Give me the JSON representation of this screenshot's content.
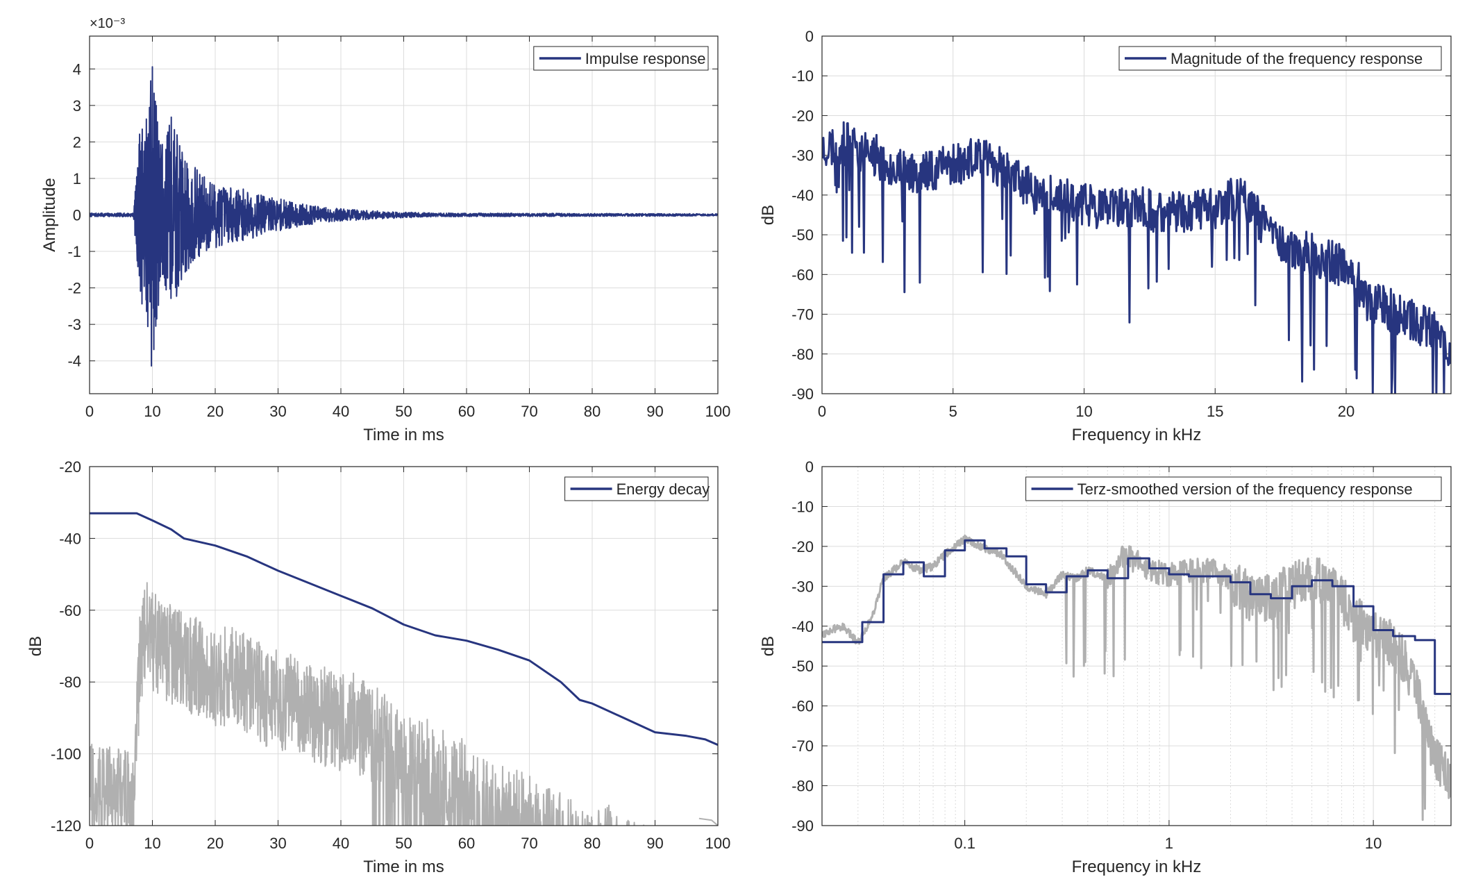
{
  "colors": {
    "series": "#27357f",
    "gray": "#b0b0b0",
    "grid": "#dcdcdc",
    "axis": "#262626",
    "background": "#ffffff"
  },
  "chart_data": [
    {
      "id": "impulse",
      "type": "line",
      "xlabel": "Time in ms",
      "ylabel": "Amplitude",
      "exponent_label": "×10⁻³",
      "xlim": [
        0,
        100
      ],
      "ylim": [
        -4.9,
        4.9
      ],
      "xticks": [
        0,
        10,
        20,
        30,
        40,
        50,
        60,
        70,
        80,
        90,
        100
      ],
      "yticks": [
        -4,
        -3,
        -2,
        -1,
        0,
        1,
        2,
        3,
        4
      ],
      "legend": {
        "position": "top-right",
        "entries": [
          "Impulse response"
        ]
      },
      "grid": true,
      "series": [
        {
          "name": "Impulse response",
          "envelope": [
            [
              0,
              0.05
            ],
            [
              7,
              0.05
            ],
            [
              8,
              2.3
            ],
            [
              9,
              2.7
            ],
            [
              10,
              4.4
            ],
            [
              11,
              2.4
            ],
            [
              12,
              1.9
            ],
            [
              13,
              2.7
            ],
            [
              15,
              1.6
            ],
            [
              18,
              1.1
            ],
            [
              20,
              0.95
            ],
            [
              22,
              0.75
            ],
            [
              25,
              0.7
            ],
            [
              28,
              0.5
            ],
            [
              30,
              0.45
            ],
            [
              34,
              0.3
            ],
            [
              38,
              0.2
            ],
            [
              42,
              0.15
            ],
            [
              47,
              0.1
            ],
            [
              55,
              0.05
            ],
            [
              100,
              0.03
            ]
          ]
        }
      ]
    },
    {
      "id": "magnitude",
      "type": "line",
      "xlabel": "Frequency in kHz",
      "ylabel": "dB",
      "xlim": [
        0,
        24
      ],
      "ylim": [
        -90,
        0
      ],
      "xticks": [
        0,
        5,
        10,
        15,
        20
      ],
      "yticks": [
        0,
        -10,
        -20,
        -30,
        -40,
        -50,
        -60,
        -70,
        -80,
        -90
      ],
      "legend": {
        "position": "top-right",
        "entries": [
          "Magnitude of the frequency response"
        ]
      },
      "grid": true,
      "series": [
        {
          "name": "Magnitude of the frequency response",
          "trend": [
            [
              0,
              -28
            ],
            [
              1,
              -27
            ],
            [
              2,
              -30
            ],
            [
              3,
              -34
            ],
            [
              4,
              -34
            ],
            [
              5,
              -32
            ],
            [
              6,
              -31
            ],
            [
              7,
              -33
            ],
            [
              8,
              -39
            ],
            [
              9,
              -41
            ],
            [
              10,
              -42
            ],
            [
              11,
              -44
            ],
            [
              12,
              -43
            ],
            [
              13,
              -45
            ],
            [
              14,
              -44
            ],
            [
              15,
              -43
            ],
            [
              16,
              -40
            ],
            [
              17,
              -49
            ],
            [
              18,
              -53
            ],
            [
              19,
              -56
            ],
            [
              20,
              -58
            ],
            [
              21,
              -67
            ],
            [
              22,
              -70
            ],
            [
              23,
              -73
            ],
            [
              24,
              -78
            ]
          ]
        }
      ]
    },
    {
      "id": "decay",
      "type": "line",
      "xlabel": "Time in ms",
      "ylabel": "dB",
      "xlim": [
        0,
        100
      ],
      "ylim": [
        -120,
        -20
      ],
      "xticks": [
        0,
        10,
        20,
        30,
        40,
        50,
        60,
        70,
        80,
        90,
        100
      ],
      "yticks": [
        -20,
        -40,
        -60,
        -80,
        -100,
        -120
      ],
      "legend": {
        "position": "top-right",
        "entries": [
          "Energy decay"
        ]
      },
      "grid": true,
      "series": [
        {
          "name": "Energy decay",
          "points": [
            [
              0,
              -33
            ],
            [
              7.5,
              -33
            ],
            [
              10,
              -35
            ],
            [
              13,
              -37.5
            ],
            [
              15,
              -40
            ],
            [
              20,
              -42
            ],
            [
              25,
              -45
            ],
            [
              30,
              -49
            ],
            [
              35,
              -52.5
            ],
            [
              40,
              -56
            ],
            [
              45,
              -59.5
            ],
            [
              50,
              -64
            ],
            [
              55,
              -67
            ],
            [
              60,
              -68.5
            ],
            [
              65,
              -71
            ],
            [
              70,
              -74
            ],
            [
              75,
              -80
            ],
            [
              78,
              -85
            ],
            [
              80,
              -86
            ],
            [
              85,
              -90
            ],
            [
              90,
              -94
            ],
            [
              95,
              -95
            ],
            [
              98,
              -96
            ],
            [
              100,
              -97.5
            ]
          ]
        },
        {
          "name": "",
          "envelope": [
            [
              0,
              -97
            ],
            [
              7,
              -99
            ],
            [
              8,
              -60
            ],
            [
              9,
              -50
            ],
            [
              10,
              -55
            ],
            [
              12,
              -57
            ],
            [
              15,
              -60
            ],
            [
              18,
              -63
            ],
            [
              20,
              -65
            ],
            [
              22,
              -64
            ],
            [
              25,
              -66
            ],
            [
              28,
              -70
            ],
            [
              30,
              -71
            ],
            [
              33,
              -72
            ],
            [
              35,
              -74
            ],
            [
              38,
              -76
            ],
            [
              40,
              -78
            ],
            [
              42,
              -77
            ],
            [
              45,
              -80
            ],
            [
              48,
              -85
            ],
            [
              50,
              -88
            ],
            [
              52,
              -88
            ],
            [
              55,
              -92
            ],
            [
              57,
              -92
            ],
            [
              60,
              -97
            ],
            [
              62,
              -100
            ],
            [
              65,
              -103
            ],
            [
              70,
              -105
            ],
            [
              72,
              -108
            ],
            [
              75,
              -110
            ],
            [
              78,
              -115
            ],
            [
              80,
              -115
            ],
            [
              82,
              -112
            ],
            [
              85,
              -118
            ],
            [
              88,
              -119
            ],
            [
              90,
              -119
            ]
          ]
        }
      ]
    },
    {
      "id": "terz",
      "type": "line",
      "xlabel": "Frequency in kHz",
      "ylabel": "dB",
      "xscale": "log",
      "xlim": [
        0.02,
        24
      ],
      "ylim": [
        -90,
        0
      ],
      "xticks": [
        0.1,
        1,
        10
      ],
      "xticklabels": [
        "0.1",
        "1",
        "10"
      ],
      "yticks": [
        0,
        -10,
        -20,
        -30,
        -40,
        -50,
        -60,
        -70,
        -80,
        -90
      ],
      "legend": {
        "position": "top-right",
        "entries": [
          "Terz-smoothed version of the frequency response"
        ]
      },
      "grid": true,
      "series": [
        {
          "name": "Terz-smoothed version of the frequency response",
          "steps": [
            [
              0.02,
              -44
            ],
            [
              0.0315,
              -39
            ],
            [
              0.04,
              -27
            ],
            [
              0.05,
              -24
            ],
            [
              0.063,
              -27.5
            ],
            [
              0.08,
              -21
            ],
            [
              0.1,
              -18.5
            ],
            [
              0.125,
              -20.5
            ],
            [
              0.16,
              -22.5
            ],
            [
              0.2,
              -29.5
            ],
            [
              0.25,
              -31.5
            ],
            [
              0.315,
              -27.5
            ],
            [
              0.4,
              -26
            ],
            [
              0.5,
              -28
            ],
            [
              0.63,
              -23
            ],
            [
              0.8,
              -25.5
            ],
            [
              1.0,
              -27
            ],
            [
              1.25,
              -27.5
            ],
            [
              1.6,
              -27.5
            ],
            [
              2.0,
              -29
            ],
            [
              2.5,
              -32
            ],
            [
              3.15,
              -33
            ],
            [
              4.0,
              -30
            ],
            [
              5.0,
              -28.5
            ],
            [
              6.3,
              -30
            ],
            [
              8.0,
              -35
            ],
            [
              10,
              -41
            ],
            [
              12.5,
              -42.5
            ],
            [
              16,
              -43.5
            ],
            [
              20,
              -57
            ],
            [
              24,
              -57
            ]
          ]
        },
        {
          "name": "",
          "points": [
            [
              0.02,
              -42
            ],
            [
              0.025,
              -40
            ],
            [
              0.03,
              -44
            ],
            [
              0.035,
              -38
            ],
            [
              0.04,
              -28
            ],
            [
              0.05,
              -24
            ],
            [
              0.06,
              -26
            ],
            [
              0.07,
              -25
            ],
            [
              0.08,
              -22
            ],
            [
              0.1,
              -18
            ],
            [
              0.12,
              -20
            ],
            [
              0.15,
              -22
            ],
            [
              0.18,
              -27
            ],
            [
              0.2,
              -30
            ],
            [
              0.25,
              -32
            ],
            [
              0.3,
              -27
            ],
            [
              0.35,
              -28
            ],
            [
              0.4,
              -26
            ],
            [
              0.5,
              -28
            ],
            [
              0.6,
              -22
            ],
            [
              0.7,
              -24
            ],
            [
              0.8,
              -26
            ],
            [
              1.0,
              -27
            ],
            [
              1.3,
              -26
            ],
            [
              1.6,
              -26
            ],
            [
              2.0,
              -28
            ],
            [
              2.5,
              -33
            ],
            [
              3.0,
              -33
            ],
            [
              4.0,
              -30
            ],
            [
              5.0,
              -28
            ],
            [
              6.0,
              -30
            ],
            [
              7.0,
              -33
            ],
            [
              8.0,
              -38
            ],
            [
              10,
              -42
            ],
            [
              12,
              -44
            ],
            [
              14,
              -48
            ],
            [
              16,
              -55
            ],
            [
              18,
              -65
            ],
            [
              20,
              -72
            ],
            [
              22,
              -76
            ],
            [
              24,
              -80
            ]
          ]
        }
      ]
    }
  ]
}
